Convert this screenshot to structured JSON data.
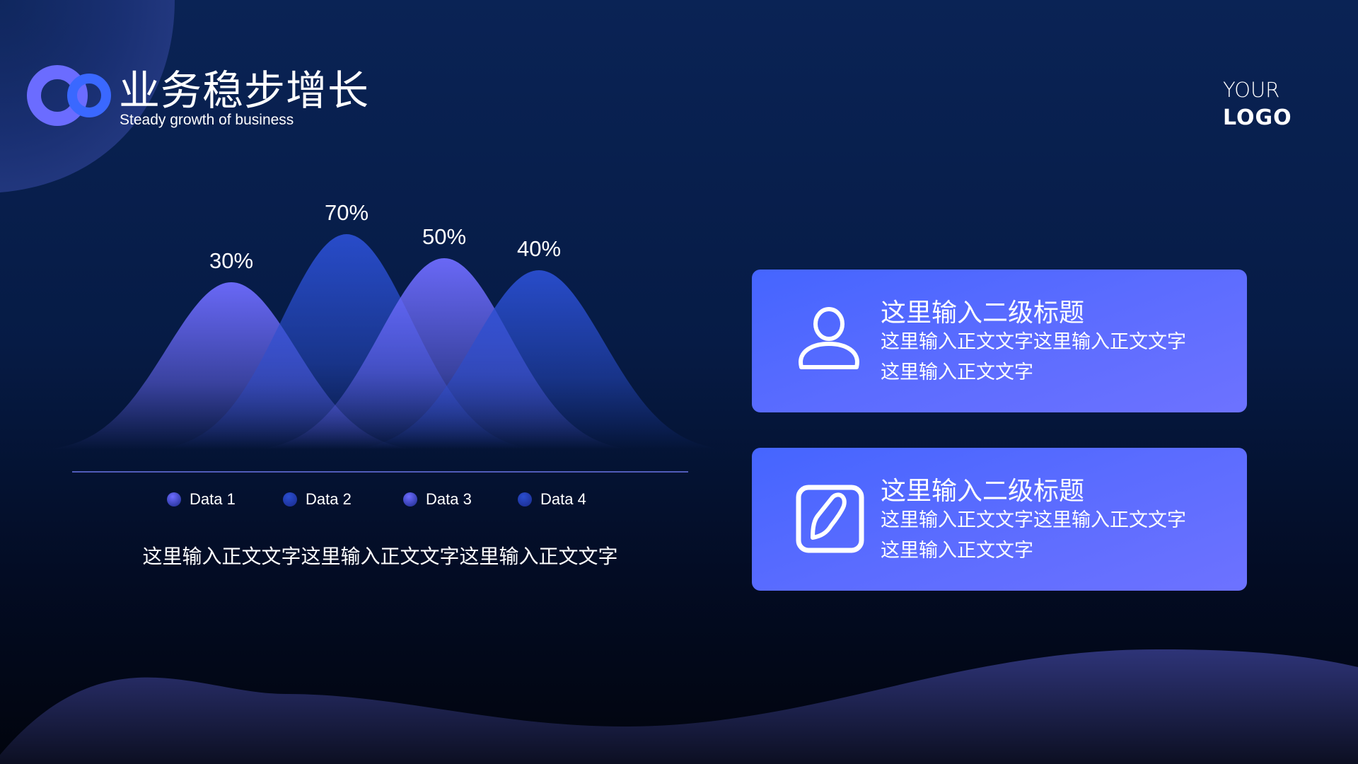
{
  "header": {
    "title": "业务稳步增长",
    "subtitle": "Steady growth of business"
  },
  "brand": {
    "line1": "YOUR",
    "line2": "LOGO"
  },
  "chart_data": {
    "type": "area",
    "categories": [
      "Data 1",
      "Data 2",
      "Data 3",
      "Data 4"
    ],
    "values": [
      30,
      70,
      50,
      40
    ],
    "labels": [
      "30%",
      "70%",
      "50%",
      "40%"
    ],
    "colors": [
      "#6e6cff",
      "#2a4ed0",
      "#6e6cff",
      "#2a4ed0"
    ],
    "legend_position": "bottom",
    "grid": false
  },
  "chart_caption": "这里输入正文文字这里输入正文文字这里输入正文文字",
  "cards": [
    {
      "icon": "user-icon",
      "title": "这里输入二级标题",
      "line1": "这里输入正文文字这里输入正文文字",
      "line2": "这里输入正文文字"
    },
    {
      "icon": "edit-icon",
      "title": "这里输入二级标题",
      "line1": "这里输入正文文字这里输入正文文字",
      "line2": "这里输入正文文字"
    }
  ],
  "colors": {
    "card_start": "#4565ff",
    "card_end": "#6d72ff",
    "background": "#0a2355"
  }
}
